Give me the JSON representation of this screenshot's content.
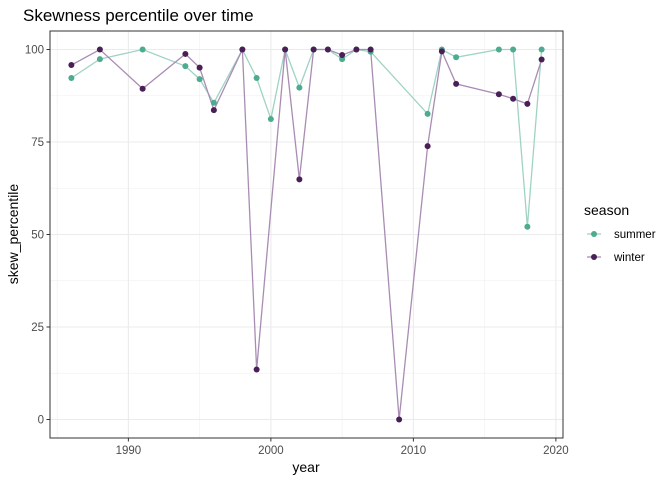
{
  "chart_data": {
    "type": "line",
    "title": "Skewness percentile over time",
    "xlabel": "year",
    "ylabel": "skew_percentile",
    "xlim": [
      1984.5,
      2020.5
    ],
    "ylim": [
      -5,
      105
    ],
    "x_ticks": [
      1990,
      2000,
      2010,
      2020
    ],
    "y_ticks": [
      0,
      25,
      50,
      75,
      100
    ],
    "grid": true,
    "legend": {
      "title": "season",
      "position": "right"
    },
    "series": [
      {
        "name": "summer",
        "color": "#4dab8f",
        "line_color": "#9fd3c4",
        "x": [
          1986,
          1988,
          1991,
          1994,
          1995,
          1996,
          1998,
          1999,
          2000,
          2001,
          2002,
          2003,
          2004,
          2005,
          2006,
          2007,
          2011,
          2012,
          2013,
          2016,
          2017,
          2018,
          2019
        ],
        "y": [
          92.3,
          97.4,
          100,
          95.5,
          92,
          85.6,
          100,
          92.3,
          81.2,
          100,
          89.7,
          100,
          100,
          97.4,
          100,
          99.4,
          82.6,
          100,
          97.9,
          100,
          100,
          52.1,
          100
        ]
      },
      {
        "name": "winter",
        "color": "#4a1f57",
        "line_color": "#a98cb3",
        "x": [
          1986,
          1988,
          1991,
          1994,
          1995,
          1996,
          1998,
          1999,
          2001,
          2002,
          2003,
          2004,
          2005,
          2006,
          2007,
          2009,
          2011,
          2012,
          2013,
          2016,
          2017,
          2018,
          2019
        ],
        "y": [
          95.8,
          100,
          89.4,
          98.8,
          95.1,
          83.6,
          100,
          13.5,
          100,
          64.9,
          100,
          100,
          98.5,
          100,
          100,
          0,
          73.9,
          99.5,
          90.7,
          87.9,
          86.7,
          85.3,
          97.3
        ]
      }
    ]
  }
}
